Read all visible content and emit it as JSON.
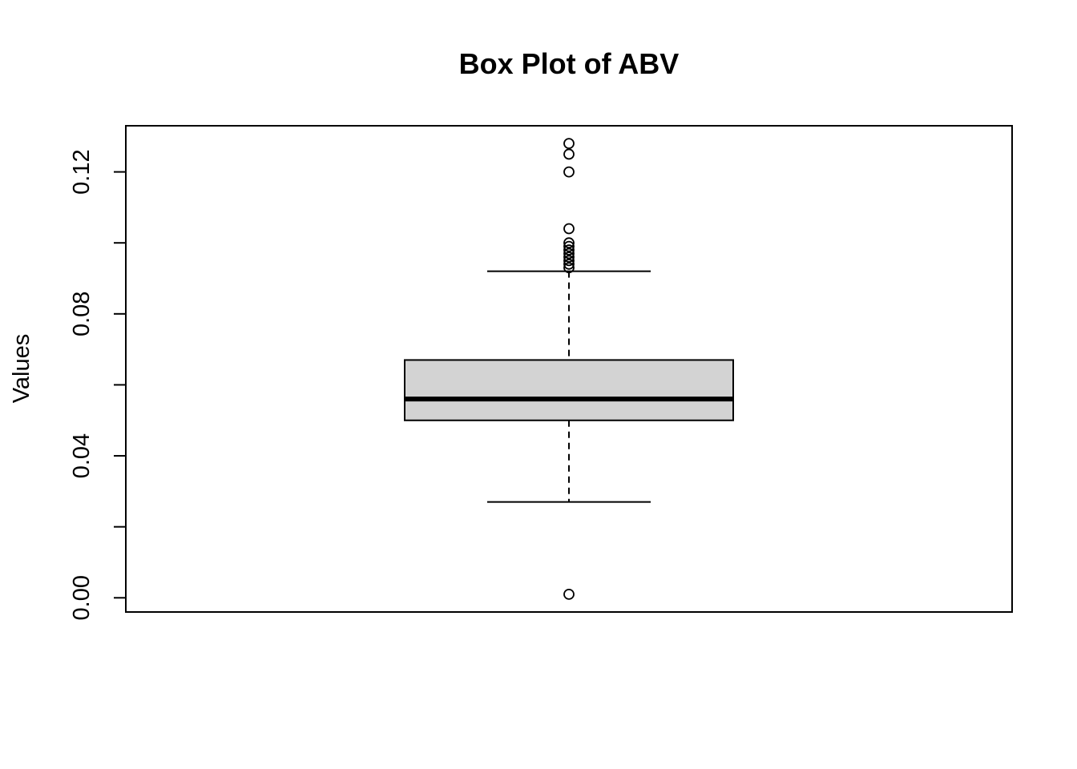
{
  "chart_data": {
    "type": "box",
    "title": "Box Plot of ABV",
    "xlabel": "",
    "ylabel": "Values",
    "ylim": [
      -0.004,
      0.133
    ],
    "y_ticks": [
      0.0,
      0.02,
      0.04,
      0.06,
      0.08,
      0.1,
      0.12
    ],
    "y_tick_labels": [
      "0.00",
      "",
      "0.04",
      "",
      "0.08",
      "",
      "0.12"
    ],
    "box": {
      "min_whisker": 0.027,
      "q1": 0.05,
      "median": 0.056,
      "q3": 0.067,
      "max_whisker": 0.092
    },
    "outliers": [
      0.001,
      0.093,
      0.094,
      0.095,
      0.096,
      0.097,
      0.098,
      0.099,
      0.1,
      0.104,
      0.12,
      0.125,
      0.128
    ],
    "colors": {
      "box_fill": "#d3d3d3",
      "stroke": "#000000"
    },
    "grid": false,
    "legend": "none"
  }
}
